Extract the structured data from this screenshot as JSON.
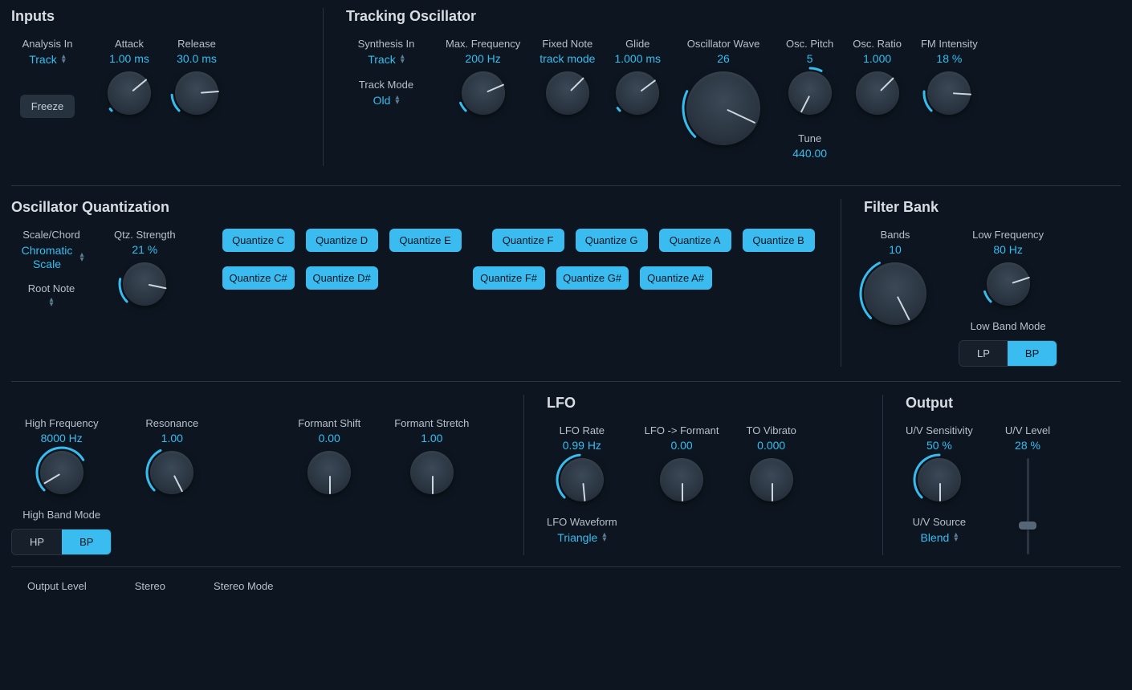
{
  "colors": {
    "accent": "#36bdf0",
    "bg": "#0d1620",
    "knob": "#2a3541"
  },
  "inputs": {
    "title": "Inputs",
    "analysis_in": {
      "label": "Analysis In",
      "value": "Track"
    },
    "attack": {
      "label": "Attack",
      "value": "1.00 ms",
      "pct": 2,
      "mode": "left"
    },
    "release": {
      "label": "Release",
      "value": "30.0 ms",
      "pct": 15,
      "mode": "left"
    },
    "freeze": "Freeze"
  },
  "tracking": {
    "title": "Tracking Oscillator",
    "synthesis_in": {
      "label": "Synthesis In",
      "value": "Track"
    },
    "track_mode": {
      "label": "Track Mode",
      "value": "Old"
    },
    "max_freq": {
      "label": "Max. Frequency",
      "value": "200 Hz",
      "pct": 8,
      "mode": "left"
    },
    "fixed_note": {
      "label": "Fixed Note",
      "value": "track mode",
      "pct": 0,
      "mode": "none"
    },
    "glide": {
      "label": "Glide",
      "value": "1.000 ms",
      "pct": 3,
      "mode": "left"
    },
    "osc_wave": {
      "label": "Oscillator Wave",
      "value": "26",
      "pct": 26,
      "mode": "left"
    },
    "osc_pitch": {
      "label": "Osc. Pitch",
      "value": "5",
      "pct": 60,
      "mode": "center"
    },
    "osc_ratio": {
      "label": "Osc. Ratio",
      "value": "1.000",
      "pct": 0,
      "mode": "left"
    },
    "fm_intensity": {
      "label": "FM Intensity",
      "value": "18 %",
      "pct": 18,
      "mode": "left"
    },
    "tune": {
      "label": "Tune",
      "value": "440.00"
    }
  },
  "quant": {
    "title": "Oscillator Quantization",
    "scale": {
      "label": "Scale/Chord",
      "value": "Chromatic Scale"
    },
    "root": {
      "label": "Root Note",
      "value": ""
    },
    "strength": {
      "label": "Qtz. Strength",
      "value": "21 %",
      "pct": 21,
      "mode": "left"
    },
    "buttons_row1": [
      "Quantize C",
      "Quantize D",
      "Quantize E",
      "Quantize F",
      "Quantize G",
      "Quantize A",
      "Quantize B"
    ],
    "buttons_row2": [
      "Quantize C#",
      "Quantize D#",
      "",
      "Quantize F#",
      "Quantize G#",
      "Quantize A#",
      ""
    ]
  },
  "filter": {
    "title": "Filter Bank",
    "bands": {
      "label": "Bands",
      "value": "10",
      "pct": 40,
      "mode": "left"
    },
    "low_freq": {
      "label": "Low Frequency",
      "value": "80 Hz",
      "pct": 10,
      "mode": "left"
    },
    "low_mode": {
      "label": "Low Band Mode",
      "options": [
        "LP",
        "BP"
      ],
      "active": "BP"
    },
    "high_freq": {
      "label": "High Frequency",
      "value": "8000 Hz",
      "pct": 72,
      "mode": "left"
    },
    "resonance": {
      "label": "Resonance",
      "value": "1.00",
      "pct": 40,
      "mode": "left"
    },
    "high_mode": {
      "label": "High Band Mode",
      "options": [
        "HP",
        "BP"
      ],
      "active": "BP"
    },
    "formant_shift": {
      "label": "Formant Shift",
      "value": "0.00",
      "pct": 50,
      "mode": "center"
    },
    "formant_stretch": {
      "label": "Formant Stretch",
      "value": "1.00",
      "pct": 50,
      "mode": "center"
    }
  },
  "lfo": {
    "title": "LFO",
    "rate": {
      "label": "LFO Rate",
      "value": "0.99 Hz",
      "pct": 48,
      "mode": "left"
    },
    "to_formant": {
      "label": "LFO -> Formant",
      "value": "0.00",
      "pct": 50,
      "mode": "center"
    },
    "to_vibrato": {
      "label": "TO Vibrato",
      "value": "0.000",
      "pct": 50,
      "mode": "center"
    },
    "waveform": {
      "label": "LFO Waveform",
      "value": "Triangle"
    }
  },
  "output": {
    "title": "Output",
    "uv_sens": {
      "label": "U/V Sensitivity",
      "value": "50 %",
      "pct": 50,
      "mode": "left"
    },
    "uv_level": {
      "label": "U/V Level",
      "value": "28 %",
      "slider_pct": 28
    },
    "uv_source": {
      "label": "U/V Source",
      "value": "Blend"
    }
  },
  "footer": {
    "output_level": "Output Level",
    "stereo": "Stereo",
    "stereo_mode": "Stereo Mode"
  }
}
